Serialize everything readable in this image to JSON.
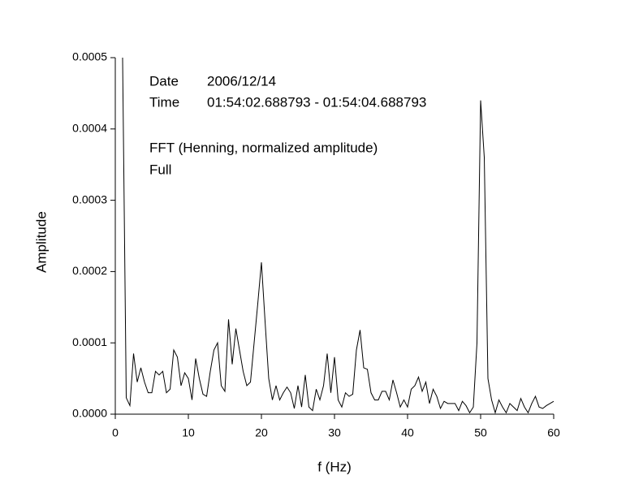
{
  "chart_data": {
    "type": "line",
    "xlabel": "f (Hz)",
    "ylabel": "Amplitude",
    "annotations": [
      "Date",
      "2006/12/14",
      "Time",
      "01:54:02.688793 - 01:54:04.688793",
      "FFT (Henning, normalized amplitude)",
      "Full"
    ],
    "color": "#000000",
    "x": [
      1,
      1.5,
      2,
      2.5,
      3,
      3.5,
      4,
      4.5,
      5,
      5.5,
      6,
      6.5,
      7,
      7.5,
      8,
      8.5,
      9,
      9.5,
      10,
      10.5,
      11,
      11.5,
      12,
      12.5,
      13,
      13.5,
      14,
      14.5,
      15,
      15.5,
      16,
      16.5,
      17,
      17.5,
      18,
      18.5,
      19,
      19.5,
      20,
      20.5,
      21,
      21.5,
      22,
      22.5,
      23,
      23.5,
      24,
      24.5,
      25,
      25.5,
      26,
      26.5,
      27,
      27.5,
      28,
      28.5,
      29,
      29.5,
      30,
      30.5,
      31,
      31.5,
      32,
      32.5,
      33,
      33.5,
      34,
      34.5,
      35,
      35.5,
      36,
      36.5,
      37,
      37.5,
      38,
      38.5,
      39,
      39.5,
      40,
      40.5,
      41,
      41.5,
      42,
      42.5,
      43,
      43.5,
      44,
      44.5,
      45,
      45.5,
      46,
      46.5,
      47,
      47.5,
      48,
      48.5,
      49,
      49.5,
      50,
      50.5,
      51,
      51.5,
      52,
      52.5,
      53,
      53.5,
      54,
      54.5,
      55,
      55.5,
      56,
      56.5,
      57,
      57.5,
      58,
      58.5,
      59,
      59.5,
      60
    ],
    "values": [
      0.0005,
      2.3e-05,
      1.2e-05,
      8.5e-05,
      4.5e-05,
      6.5e-05,
      4.5e-05,
      3e-05,
      3e-05,
      6e-05,
      5.5e-05,
      6e-05,
      3e-05,
      3.5e-05,
      9e-05,
      8e-05,
      4e-05,
      5.8e-05,
      5e-05,
      2e-05,
      7.8e-05,
      5e-05,
      2.8e-05,
      2.5e-05,
      6e-05,
      9e-05,
      0.0001,
      4e-05,
      3.2e-05,
      0.000133,
      7e-05,
      0.00012,
      9e-05,
      6e-05,
      4e-05,
      4.5e-05,
      0.0001,
      0.000155,
      0.000213,
      0.00013,
      5e-05,
      2e-05,
      4e-05,
      2e-05,
      3e-05,
      3.8e-05,
      3e-05,
      8e-06,
      4e-05,
      1e-05,
      5.5e-05,
      1e-05,
      5e-06,
      3.5e-05,
      2e-05,
      4e-05,
      8.5e-05,
      3e-05,
      8e-05,
      2e-05,
      1e-05,
      3e-05,
      2.5e-05,
      2.8e-05,
      9e-05,
      0.000118,
      6.5e-05,
      6.3e-05,
      3e-05,
      2e-05,
      2e-05,
      3.2e-05,
      3.2e-05,
      2e-05,
      4.8e-05,
      3e-05,
      1e-05,
      2e-05,
      1e-05,
      3.5e-05,
      4e-05,
      5.2e-05,
      3.2e-05,
      4.5e-05,
      1.5e-05,
      3.5e-05,
      2.5e-05,
      8e-06,
      1.8e-05,
      1.5e-05,
      1.5e-05,
      1.5e-05,
      5e-06,
      1.8e-05,
      1.2e-05,
      2e-06,
      1e-05,
      0.0001,
      0.00044,
      0.00036,
      5e-05,
      2e-05,
      2e-06,
      2e-05,
      1e-05,
      2e-06,
      1.5e-05,
      1e-05,
      5e-06,
      2.2e-05,
      1e-05,
      2e-06,
      1.5e-05,
      2.5e-05,
      1e-05,
      8e-06,
      1.2e-05,
      1.5e-05,
      1.8e-05
    ],
    "xlim": [
      0,
      60
    ],
    "xticks": [
      0,
      10,
      20,
      30,
      40,
      50,
      60
    ],
    "ylim": [
      0,
      0.0005
    ],
    "yticks": [
      {
        "value": 0,
        "label": "0.0000"
      },
      {
        "value": 0.0001,
        "label": "0.0001"
      },
      {
        "value": 0.0002,
        "label": "0.0002"
      },
      {
        "value": 0.0003,
        "label": "0.0003"
      },
      {
        "value": 0.0004,
        "label": "0.0004"
      },
      {
        "value": 0.0005,
        "label": "0.0005"
      }
    ],
    "grid": false
  }
}
